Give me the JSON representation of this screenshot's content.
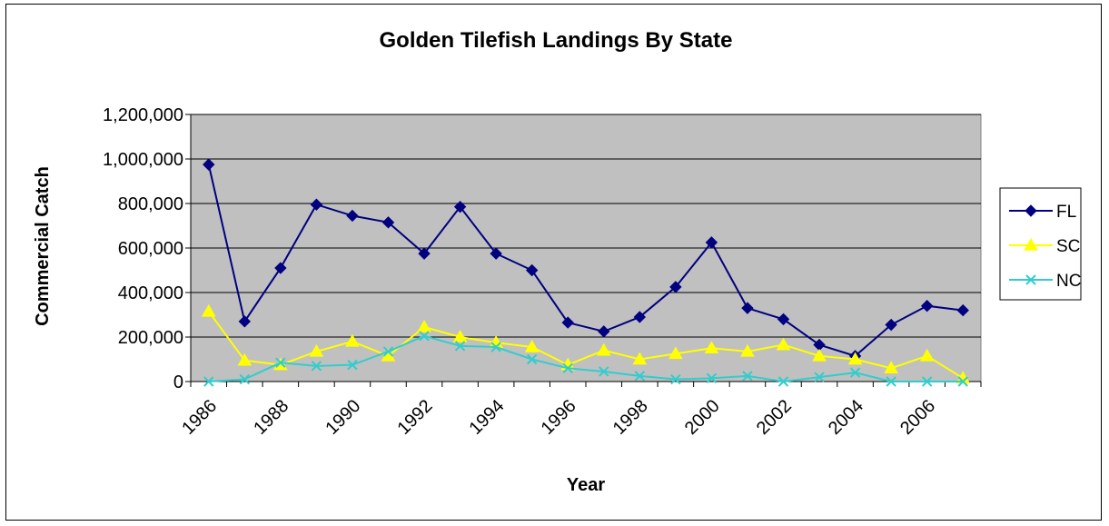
{
  "chart_data": {
    "type": "line",
    "title": "Golden Tilefish Landings By State",
    "xlabel": "Year",
    "ylabel": "Commercial Catch",
    "x": [
      1986,
      1987,
      1988,
      1989,
      1990,
      1991,
      1992,
      1993,
      1994,
      1995,
      1996,
      1997,
      1998,
      1999,
      2000,
      2001,
      2002,
      2003,
      2004,
      2005,
      2006,
      2007
    ],
    "x_tick_labels": [
      "1986",
      "1988",
      "1990",
      "1992",
      "1994",
      "1996",
      "1998",
      "2000",
      "2002",
      "2004",
      "2006"
    ],
    "ylim": [
      0,
      1200000
    ],
    "y_ticks": [
      0,
      200000,
      400000,
      600000,
      800000,
      1000000,
      1200000
    ],
    "y_tick_labels": [
      "0",
      "200,000",
      "400,000",
      "600,000",
      "800,000",
      "1,000,000",
      "1,200,000"
    ],
    "grid": true,
    "plot_background": "#c0c0c0",
    "legend_position": "right",
    "series": [
      {
        "name": "FL",
        "color": "#000080",
        "marker": "diamond",
        "values": [
          975000,
          270000,
          510000,
          795000,
          745000,
          715000,
          575000,
          785000,
          575000,
          500000,
          265000,
          225000,
          290000,
          425000,
          625000,
          330000,
          280000,
          165000,
          115000,
          255000,
          340000,
          320000
        ]
      },
      {
        "name": "SC",
        "color": "#ffff00",
        "marker": "triangle",
        "values": [
          315000,
          95000,
          75000,
          135000,
          180000,
          115000,
          245000,
          200000,
          175000,
          155000,
          75000,
          140000,
          100000,
          125000,
          150000,
          135000,
          165000,
          115000,
          100000,
          60000,
          115000,
          15000
        ]
      },
      {
        "name": "NC",
        "color": "#33cccc",
        "marker": "x",
        "values": [
          0,
          10000,
          85000,
          70000,
          75000,
          135000,
          205000,
          160000,
          155000,
          100000,
          60000,
          45000,
          25000,
          10000,
          15000,
          25000,
          0,
          20000,
          40000,
          0,
          0,
          0
        ]
      }
    ]
  }
}
